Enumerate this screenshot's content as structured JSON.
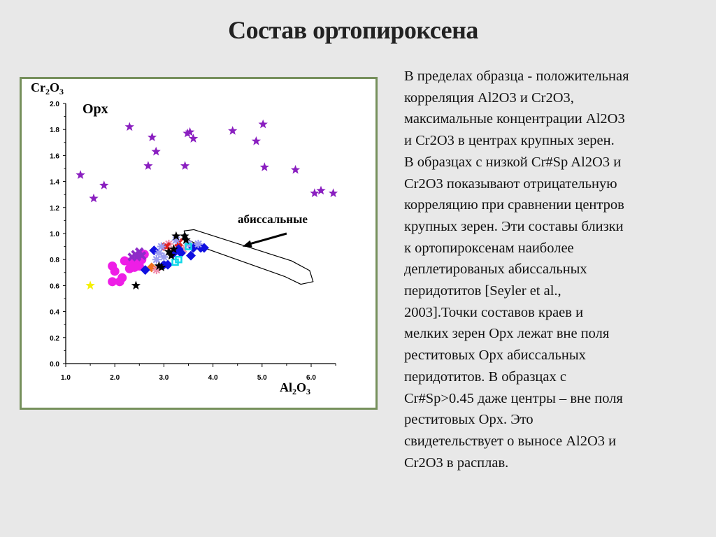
{
  "slide": {
    "title": "Состав ортопироксена",
    "body_lines": [
      "В пределах образца - положительная",
      "корреляция Al2O3 и Cr2O3,",
      "максимальные концентрации Al2O3",
      "и Cr2O3  в центрах крупных зерен.",
      "В образцах с низкой Cr#Sp Al2O3 и",
      "Cr2O3 показывают отрицательную",
      "корреляцию при сравнении центров",
      "крупных зерен. Эти составы близки",
      "к ортопироксенам наиболее",
      "деплетированых абиссальных",
      "перидотитов [Seyler et al.,",
      "2003].Точки составов краев и",
      "мелких зерен Opx лежат вне поля",
      "реститовых Opx абиссальных",
      "перидотитов. В образцах с",
      "Cr#Sp>0.45 даже центры – вне поля",
      "реститовых Opx. Это",
      "свидетельствует о выносе Al2O3 и",
      "Cr2O3 в расплав."
    ]
  },
  "chart_data": {
    "type": "scatter",
    "title": "Opx",
    "xlabel": "Al2O3",
    "ylabel": "Cr2O3",
    "xlabel_main": "Al",
    "xlabel_sub1": "2",
    "xlabel_o": "O",
    "xlabel_sub2": "3",
    "ylabel_main": "Cr",
    "ylabel_sub1": "2",
    "ylabel_o": "O",
    "ylabel_sub2": "3",
    "xlim": [
      1.0,
      6.5
    ],
    "ylim": [
      0.0,
      2.0
    ],
    "xticks": [
      "1.0",
      "2.0",
      "3.0",
      "4.0",
      "5.0",
      "6.0"
    ],
    "yticks": [
      "0.0",
      "0.2",
      "0.4",
      "0.6",
      "0.8",
      "1.0",
      "1.2",
      "1.4",
      "1.6",
      "1.8",
      "2.0"
    ],
    "grid": false,
    "annotation": {
      "text": "абиссальные",
      "arrow_from": [
        5.5,
        1.0
      ],
      "arrow_to": [
        4.6,
        0.9
      ]
    },
    "field": {
      "name": "abyssal peridotite field",
      "points": [
        [
          3.41,
          1.02
        ],
        [
          3.61,
          1.03
        ],
        [
          5.6,
          0.79
        ],
        [
          5.97,
          0.715
        ],
        [
          6.04,
          0.63
        ],
        [
          5.79,
          0.61
        ],
        [
          5.46,
          0.67
        ],
        [
          3.89,
          0.88
        ],
        [
          3.5,
          0.95
        ]
      ]
    },
    "series": [
      {
        "name": "purple stars",
        "marker": "star",
        "color": "#8a1fc0",
        "points": [
          [
            1.3,
            1.45
          ],
          [
            1.57,
            1.27
          ],
          [
            1.78,
            1.37
          ],
          [
            2.3,
            1.82
          ],
          [
            2.68,
            1.52
          ],
          [
            2.76,
            1.74
          ],
          [
            2.84,
            1.63
          ],
          [
            3.43,
            1.52
          ],
          [
            3.48,
            1.77
          ],
          [
            3.53,
            1.78
          ],
          [
            3.6,
            1.73
          ],
          [
            4.4,
            1.79
          ],
          [
            4.88,
            1.71
          ],
          [
            5.02,
            1.84
          ],
          [
            5.05,
            1.51
          ],
          [
            5.68,
            1.49
          ],
          [
            6.07,
            1.31
          ],
          [
            6.2,
            1.33
          ],
          [
            6.45,
            1.31
          ]
        ]
      },
      {
        "name": "magenta circles",
        "marker": "circle",
        "color": "#ee1ee6",
        "points": [
          [
            1.95,
            0.75
          ],
          [
            2.0,
            0.71
          ],
          [
            1.95,
            0.63
          ],
          [
            2.1,
            0.63
          ],
          [
            2.15,
            0.66
          ],
          [
            2.2,
            0.79
          ],
          [
            2.3,
            0.78
          ],
          [
            2.3,
            0.73
          ],
          [
            2.4,
            0.74
          ],
          [
            2.5,
            0.75
          ],
          [
            2.55,
            0.8
          ],
          [
            2.6,
            0.84
          ],
          [
            2.45,
            0.8
          ],
          [
            2.35,
            0.75
          ],
          [
            2.5,
            0.78
          ]
        ]
      },
      {
        "name": "purple filled",
        "marker": "cross",
        "color": "#8e2cc8",
        "points": [
          [
            2.35,
            0.82
          ],
          [
            2.42,
            0.84
          ],
          [
            2.5,
            0.86
          ],
          [
            2.55,
            0.83
          ],
          [
            2.45,
            0.82
          ]
        ]
      },
      {
        "name": "yellow star",
        "marker": "star",
        "color": "#f5f000",
        "points": [
          [
            1.5,
            0.6
          ]
        ]
      },
      {
        "name": "orange",
        "marker": "diamond",
        "color": "#f07020",
        "points": [
          [
            2.75,
            0.74
          ]
        ]
      },
      {
        "name": "pink",
        "marker": "asterisk",
        "color": "#f090b0",
        "points": [
          [
            2.85,
            0.72
          ],
          [
            3.4,
            0.88
          ],
          [
            3.1,
            0.92
          ]
        ]
      },
      {
        "name": "red",
        "marker": "cross",
        "color": "#e02020",
        "points": [
          [
            3.05,
            0.9
          ],
          [
            3.3,
            0.93
          ]
        ]
      },
      {
        "name": "blue diamonds",
        "marker": "diamond",
        "color": "#1010e0",
        "points": [
          [
            2.62,
            0.72
          ],
          [
            2.8,
            0.87
          ],
          [
            3.0,
            0.76
          ],
          [
            3.08,
            0.76
          ],
          [
            3.3,
            0.88
          ],
          [
            3.35,
            0.85
          ],
          [
            3.55,
            0.83
          ],
          [
            3.6,
            0.89
          ],
          [
            3.75,
            0.89
          ],
          [
            3.82,
            0.89
          ],
          [
            3.2,
            0.85
          ]
        ]
      },
      {
        "name": "lavender asterisks",
        "marker": "asterisk",
        "color": "#9a9cf0",
        "points": [
          [
            2.85,
            0.8
          ],
          [
            2.9,
            0.85
          ],
          [
            2.95,
            0.9
          ],
          [
            3.25,
            0.95
          ],
          [
            3.7,
            0.92
          ],
          [
            3.5,
            0.92
          ],
          [
            3.0,
            0.82
          ]
        ]
      },
      {
        "name": "cyan squares",
        "marker": "square",
        "color": "#10d8e8",
        "points": [
          [
            3.23,
            0.78
          ],
          [
            3.3,
            0.8
          ],
          [
            3.5,
            0.9
          ]
        ]
      },
      {
        "name": "black stars",
        "marker": "star",
        "color": "#000000",
        "points": [
          [
            2.43,
            0.6
          ],
          [
            3.25,
            0.98
          ],
          [
            3.42,
            0.98
          ],
          [
            3.45,
            0.95
          ],
          [
            2.9,
            0.75
          ],
          [
            2.95,
            0.74
          ],
          [
            3.15,
            0.83
          ],
          [
            3.2,
            0.88
          ],
          [
            3.1,
            0.86
          ]
        ]
      }
    ]
  }
}
